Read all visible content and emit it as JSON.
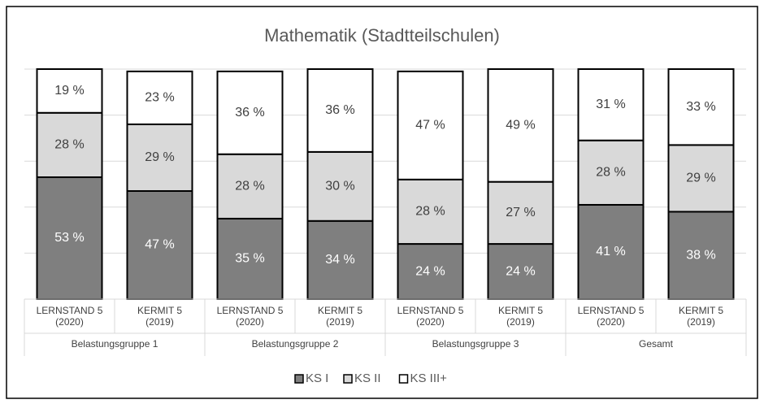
{
  "chart_data": {
    "type": "stacked_bar",
    "title": "Mathematik (Stadtteilschulen)",
    "categories": [
      [
        "LERNSTAND 5",
        "(2020)"
      ],
      [
        "KERMIT 5",
        "(2019)"
      ],
      [
        "LERNSTAND 5",
        "(2020)"
      ],
      [
        "KERMIT 5",
        "(2019)"
      ],
      [
        "LERNSTAND 5",
        "(2020)"
      ],
      [
        "KERMIT 5",
        "(2019)"
      ],
      [
        "LERNSTAND 5",
        "(2020)"
      ],
      [
        "KERMIT 5",
        "(2019)"
      ]
    ],
    "groups": [
      "Belastungsgruppe 1",
      "Belastungsgruppe 2",
      "Belastungsgruppe 3",
      "Gesamt"
    ],
    "series": [
      {
        "name": "KS I",
        "color": "#7f7f7f",
        "values": [
          53,
          47,
          35,
          34,
          24,
          24,
          41,
          38
        ],
        "value_labels": [
          "53 %",
          "47 %",
          "35 %",
          "34 %",
          "24 %",
          "24 %",
          "41 %",
          "38 %"
        ]
      },
      {
        "name": "KS II",
        "color": "#d9d9d9",
        "values": [
          28,
          29,
          28,
          30,
          28,
          27,
          28,
          29
        ],
        "value_labels": [
          "28 %",
          "29 %",
          "28 %",
          "30 %",
          "28 %",
          "27 %",
          "28 %",
          "29 %"
        ]
      },
      {
        "name": "KS III+",
        "color": "#ffffff",
        "values": [
          19,
          23,
          36,
          36,
          47,
          49,
          31,
          33
        ],
        "value_labels": [
          "19 %",
          "23 %",
          "36 %",
          "36 %",
          "47 %",
          "49 %",
          "31 %",
          "33 %"
        ]
      }
    ],
    "ylim": [
      0,
      100
    ],
    "yticks": [
      0,
      20,
      40,
      60,
      80,
      100
    ],
    "grid": true,
    "legend": "bottom"
  }
}
